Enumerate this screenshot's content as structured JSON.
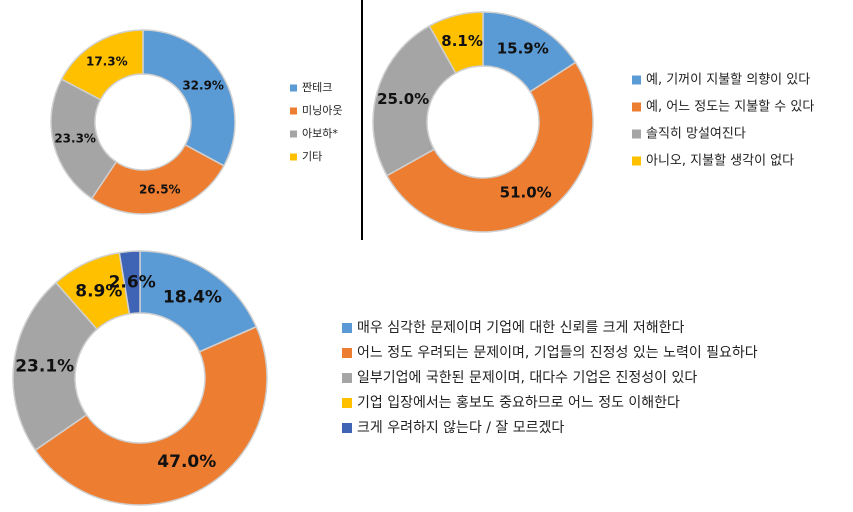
{
  "chart_data": [
    {
      "type": "pie",
      "categories": [
        "짠테크",
        "미닝아웃",
        "아보하*",
        "기타"
      ],
      "values": [
        32.9,
        26.5,
        23.3,
        17.3
      ],
      "value_labels": [
        "32.9%",
        "26.5%",
        "23.3%",
        "17.3%"
      ],
      "colors": [
        "#5b9bd5",
        "#ed7d31",
        "#a5a5a5",
        "#ffc000"
      ]
    },
    {
      "type": "pie",
      "categories": [
        "예, 기꺼이 지불할 의향이 있다",
        "예, 어느 정도는 지불할 수 있다",
        "솔직히 망설여진다",
        "아니오, 지불할 생각이 없다"
      ],
      "values": [
        15.9,
        51.0,
        25.0,
        8.1
      ],
      "value_labels": [
        "15.9%",
        "51.0%",
        "25.0%",
        "8.1%"
      ],
      "colors": [
        "#5b9bd5",
        "#ed7d31",
        "#a5a5a5",
        "#ffc000"
      ]
    },
    {
      "type": "pie",
      "categories": [
        "매우 심각한 문제이며 기업에 대한 신뢰를 크게 저해한다",
        "어느 정도 우려되는 문제이며, 기업들의 진정성 있는 노력이 필요하다",
        "일부기업에 국한된 문제이며, 대다수 기업은 진정성이 있다",
        "기업 입장에서는 홍보도 중요하므로 어느 정도 이해한다",
        "크게 우려하지 않는다 / 잘 모르겠다"
      ],
      "values": [
        18.4,
        47.0,
        23.1,
        8.9,
        2.6
      ],
      "value_labels": [
        "18.4%",
        "47.0%",
        "23.1%",
        "8.9%",
        "2.6%"
      ],
      "colors": [
        "#5b9bd5",
        "#ed7d31",
        "#a5a5a5",
        "#ffc000",
        "#3f63b5"
      ]
    }
  ]
}
